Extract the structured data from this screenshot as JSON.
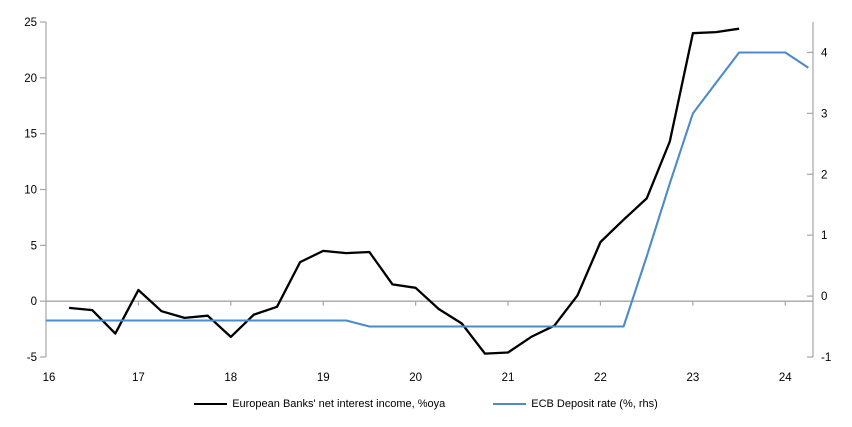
{
  "chart_data": {
    "type": "line",
    "title": "",
    "x_axis": {
      "min": 16,
      "max": 24.3,
      "tick_values": [
        16,
        17,
        18,
        19,
        20,
        21,
        22,
        23,
        24
      ],
      "tick_labels": [
        "16",
        "17",
        "18",
        "19",
        "20",
        "21",
        "22",
        "23",
        "24"
      ]
    },
    "left_axis": {
      "min": -5,
      "max": 25,
      "ticks": [
        25,
        20,
        15,
        10,
        5,
        0,
        -5
      ]
    },
    "right_axis": {
      "min": -1,
      "max": 4.5,
      "ticks": [
        4,
        3,
        2,
        1,
        0,
        -1
      ]
    },
    "zero_line": true,
    "grid": "off",
    "legend_position": "bottom",
    "axis_color": "#A6A6A6",
    "text_color": "#000000",
    "series": [
      {
        "name": "European Banks' net interest income, %oya",
        "axis": "left",
        "color": "#000000",
        "x": [
          16.25,
          16.5,
          16.75,
          17,
          17.25,
          17.5,
          17.75,
          18,
          18.25,
          18.5,
          18.75,
          19,
          19.25,
          19.5,
          19.75,
          20,
          20.25,
          20.5,
          20.75,
          21,
          21.25,
          21.5,
          21.75,
          22,
          22.25,
          22.5,
          22.75,
          23,
          23.25,
          23.5
        ],
        "values": [
          -0.6,
          -0.8,
          -2.9,
          1.0,
          -0.9,
          -1.5,
          -1.3,
          -3.2,
          -1.2,
          -0.5,
          3.5,
          4.5,
          4.3,
          4.4,
          1.5,
          1.2,
          -0.7,
          -2.0,
          -4.7,
          -4.6,
          -3.2,
          -2.2,
          0.5,
          5.3,
          7.3,
          9.2,
          14.3,
          24.0,
          24.1,
          24.4
        ]
      },
      {
        "name": "ECB Deposit rate (%, rhs)",
        "axis": "right",
        "color": "#4C8BC8",
        "x": [
          16,
          16.25,
          16.5,
          16.75,
          17,
          17.25,
          17.5,
          17.75,
          18,
          18.25,
          18.5,
          18.75,
          19,
          19.25,
          19.5,
          19.75,
          20,
          20.25,
          20.5,
          20.75,
          21,
          21.25,
          21.5,
          21.75,
          22,
          22.25,
          22.5,
          22.75,
          23,
          23.25,
          23.5,
          23.75,
          24,
          24.25
        ],
        "values": [
          -0.4,
          -0.4,
          -0.4,
          -0.4,
          -0.4,
          -0.4,
          -0.4,
          -0.4,
          -0.4,
          -0.4,
          -0.4,
          -0.4,
          -0.4,
          -0.4,
          -0.5,
          -0.5,
          -0.5,
          -0.5,
          -0.5,
          -0.5,
          -0.5,
          -0.5,
          -0.5,
          -0.5,
          -0.5,
          -0.5,
          0.65,
          1.85,
          3.0,
          3.5,
          4.0,
          4.0,
          4.0,
          3.75
        ]
      }
    ]
  }
}
